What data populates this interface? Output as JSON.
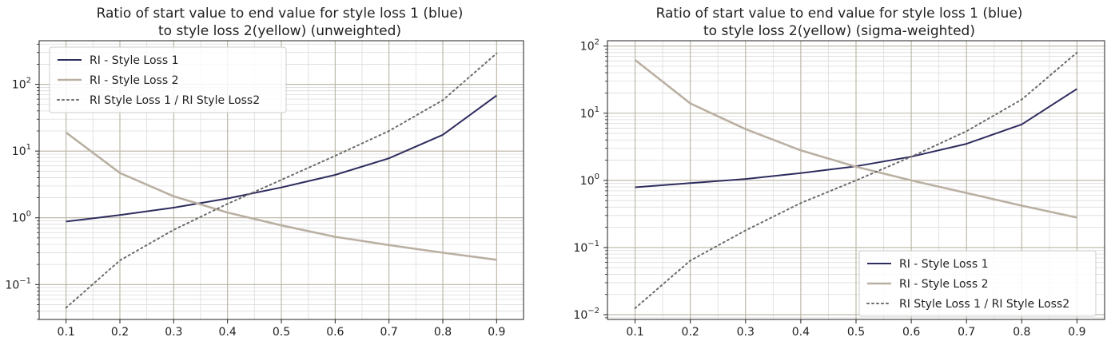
{
  "chart_data": [
    {
      "type": "line",
      "title_lines": [
        "Ratio of start value to end value for style loss 1 (blue)",
        "to style loss 2(yellow) (unweighted)"
      ],
      "xlabel": "",
      "ylabel": "",
      "yscale": "log",
      "ylim": [
        0.03,
        450
      ],
      "xlim": [
        0.05,
        0.95
      ],
      "grid": true,
      "legend_position": "upper-left",
      "x": [
        0.1,
        0.2,
        0.3,
        0.4,
        0.5,
        0.6,
        0.7,
        0.8,
        0.9
      ],
      "x_tick_labels": [
        "0.1",
        "0.2",
        "0.3",
        "0.4",
        "0.5",
        "0.6",
        "0.7",
        "0.8",
        "0.9"
      ],
      "y_ticks": [
        {
          "value": 0.1,
          "base": "10",
          "exp": "−1"
        },
        {
          "value": 1,
          "base": "10",
          "exp": "0"
        },
        {
          "value": 10,
          "base": "10",
          "exp": "1"
        },
        {
          "value": 100,
          "base": "10",
          "exp": "2"
        }
      ],
      "series": [
        {
          "name": "RI - Style Loss 1",
          "color": "#2e2c5e",
          "style": "solid",
          "values": [
            0.88,
            1.1,
            1.42,
            1.95,
            2.85,
            4.4,
            7.8,
            17.5,
            68
          ]
        },
        {
          "name": "RI - Style Loss 2",
          "color": "#bab0a2",
          "style": "solid",
          "values": [
            19,
            4.7,
            2.1,
            1.2,
            0.77,
            0.52,
            0.39,
            0.3,
            0.235
          ]
        },
        {
          "name": "RI Style Loss 1 / RI Style Loss2",
          "color": "#6b6b6b",
          "style": "dotted",
          "values": [
            0.045,
            0.23,
            0.66,
            1.62,
            3.7,
            8.5,
            20,
            58,
            290
          ]
        }
      ]
    },
    {
      "type": "line",
      "title_lines": [
        "Ratio of start value to end value for style loss 1 (blue)",
        "to style loss 2(yellow) (sigma-weighted)"
      ],
      "xlabel": "",
      "ylabel": "",
      "yscale": "log",
      "ylim": [
        0.0085,
        120
      ],
      "xlim": [
        0.05,
        0.95
      ],
      "grid": true,
      "legend_position": "lower-right",
      "x": [
        0.1,
        0.2,
        0.3,
        0.4,
        0.5,
        0.6,
        0.7,
        0.8,
        0.9
      ],
      "x_tick_labels": [
        "0.1",
        "0.2",
        "0.3",
        "0.4",
        "0.5",
        "0.6",
        "0.7",
        "0.8",
        "0.9"
      ],
      "y_ticks": [
        {
          "value": 0.01,
          "base": "10",
          "exp": "−2"
        },
        {
          "value": 0.1,
          "base": "10",
          "exp": "−1"
        },
        {
          "value": 1,
          "base": "10",
          "exp": "0"
        },
        {
          "value": 10,
          "base": "10",
          "exp": "1"
        },
        {
          "value": 100,
          "base": "10",
          "exp": "2"
        }
      ],
      "series": [
        {
          "name": "RI - Style Loss 1",
          "color": "#2e2c5e",
          "style": "solid",
          "values": [
            0.79,
            0.91,
            1.05,
            1.28,
            1.62,
            2.25,
            3.5,
            6.8,
            23
          ]
        },
        {
          "name": "RI - Style Loss 2",
          "color": "#bab0a2",
          "style": "solid",
          "values": [
            62,
            14,
            5.8,
            2.8,
            1.6,
            1.0,
            0.65,
            0.42,
            0.28
          ]
        },
        {
          "name": "RI Style Loss 1 / RI Style Loss2",
          "color": "#6b6b6b",
          "style": "dotted",
          "values": [
            0.0125,
            0.064,
            0.18,
            0.46,
            1.0,
            2.25,
            5.4,
            16,
            80
          ]
        }
      ]
    }
  ]
}
